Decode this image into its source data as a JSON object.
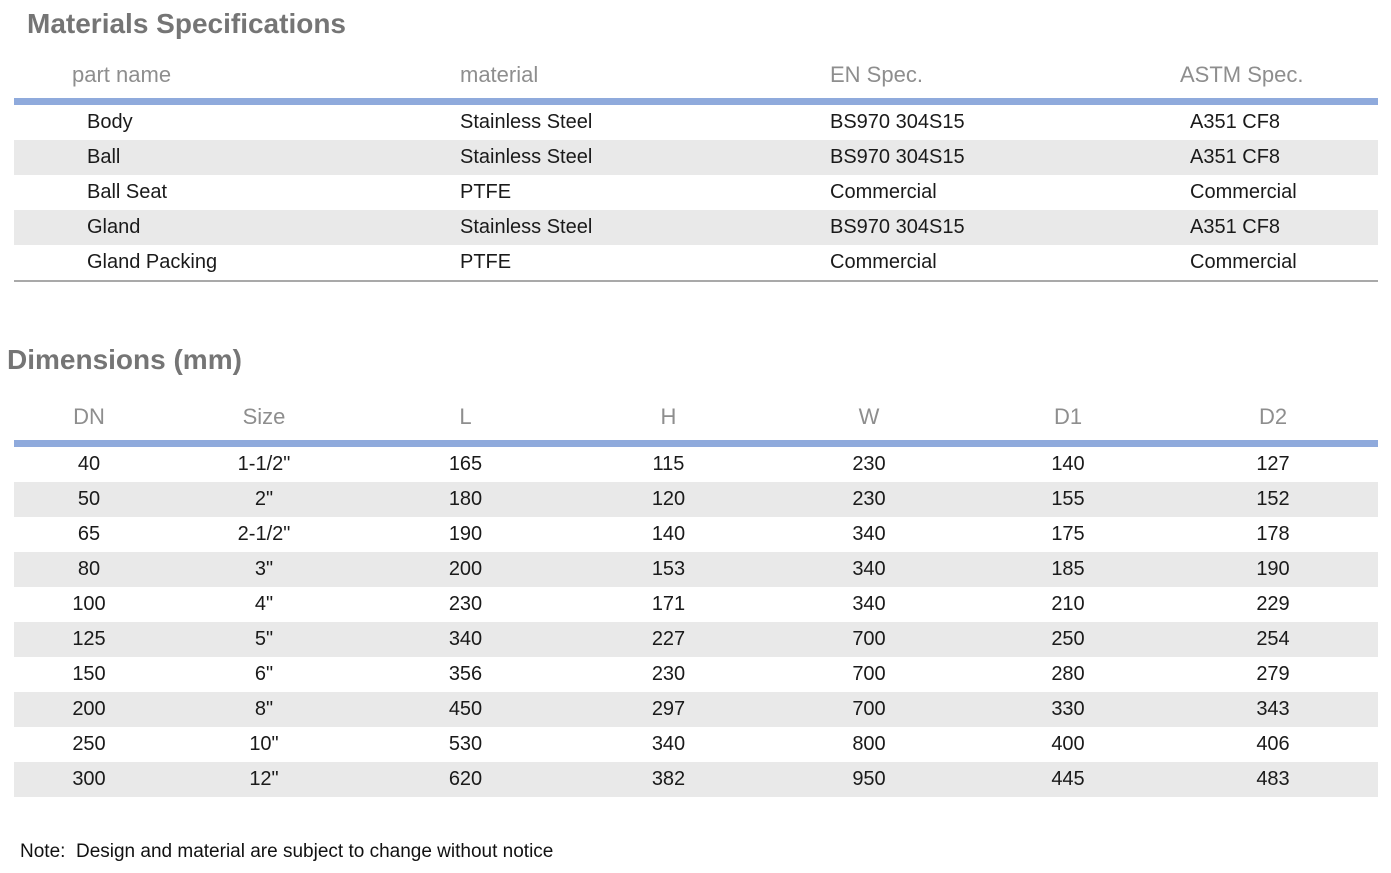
{
  "colors": {
    "accent_bar": "#8faadc",
    "stripe": "#e9e9e9",
    "heading_text": "#757575",
    "column_header_text": "#8e8e8e",
    "body_text": "#1a1a1a"
  },
  "materials": {
    "title": "Materials Specifications",
    "columns": [
      "part name",
      "material",
      "EN Spec.",
      "ASTM Spec."
    ],
    "rows": [
      [
        "Body",
        "Stainless Steel",
        "BS970 304S15",
        "A351 CF8"
      ],
      [
        "Ball",
        "Stainless Steel",
        "BS970 304S15",
        "A351 CF8"
      ],
      [
        "Ball Seat",
        "PTFE",
        "Commercial",
        "Commercial"
      ],
      [
        "Gland",
        "Stainless Steel",
        "BS970 304S15",
        "A351 CF8"
      ],
      [
        "Gland Packing",
        "PTFE",
        "Commercial",
        "Commercial"
      ]
    ]
  },
  "dimensions": {
    "title": "Dimensions (mm)",
    "columns": [
      "DN",
      "Size",
      "L",
      "H",
      "W",
      "D1",
      "D2"
    ],
    "rows": [
      [
        "40",
        "1-1/2\"",
        "165",
        "115",
        "230",
        "140",
        "127"
      ],
      [
        "50",
        "2\"",
        "180",
        "120",
        "230",
        "155",
        "152"
      ],
      [
        "65",
        "2-1/2\"",
        "190",
        "140",
        "340",
        "175",
        "178"
      ],
      [
        "80",
        "3\"",
        "200",
        "153",
        "340",
        "185",
        "190"
      ],
      [
        "100",
        "4\"",
        "230",
        "171",
        "340",
        "210",
        "229"
      ],
      [
        "125",
        "5\"",
        "340",
        "227",
        "700",
        "250",
        "254"
      ],
      [
        "150",
        "6\"",
        "356",
        "230",
        "700",
        "280",
        "279"
      ],
      [
        "200",
        "8\"",
        "450",
        "297",
        "700",
        "330",
        "343"
      ],
      [
        "250",
        "10\"",
        "530",
        "340",
        "800",
        "400",
        "406"
      ],
      [
        "300",
        "12\"",
        "620",
        "382",
        "950",
        "445",
        "483"
      ]
    ]
  },
  "note": "Note:  Design and material are subject to change without notice"
}
